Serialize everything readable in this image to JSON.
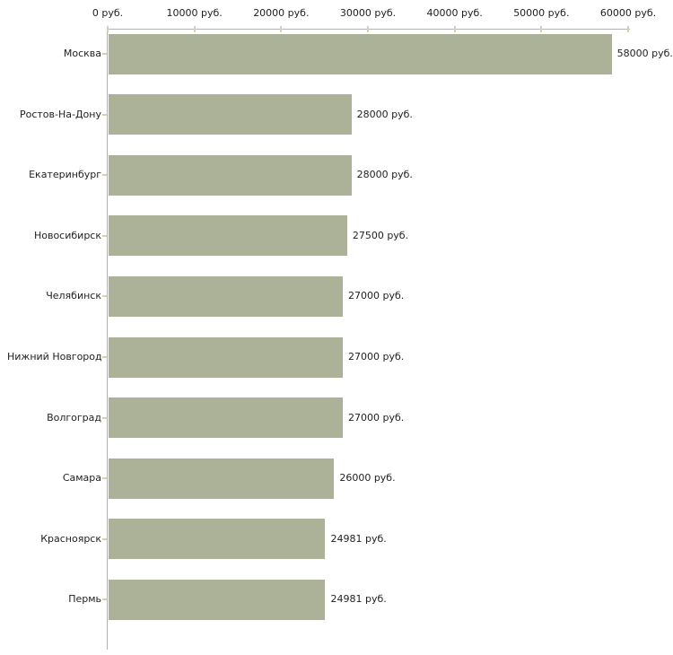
{
  "chart_data": {
    "type": "bar",
    "orientation": "horizontal",
    "title": "",
    "xlabel": "",
    "ylabel": "",
    "grid": false,
    "legend": "none",
    "xlim": [
      0,
      60000
    ],
    "x_tick_values": [
      0,
      10000,
      20000,
      30000,
      40000,
      50000,
      60000
    ],
    "x_tick_labels": [
      "0 руб.",
      "10000 руб.",
      "20000 руб.",
      "30000 руб.",
      "40000 руб.",
      "50000 руб.",
      "60000 руб."
    ],
    "categories": [
      "Москва",
      "Ростов-На-Дону",
      "Екатеринбург",
      "Новосибирск",
      "Челябинск",
      "Нижний Новгород",
      "Волгоград",
      "Самара",
      "Красноярск",
      "Пермь"
    ],
    "values": [
      58000,
      28000,
      28000,
      27500,
      27000,
      27000,
      27000,
      26000,
      24981,
      24981
    ],
    "value_labels": [
      "58000 руб.",
      "28000 руб.",
      "28000 руб.",
      "27500 руб.",
      "27000 руб.",
      "27000 руб.",
      "27000 руб.",
      "26000 руб.",
      "24981 руб.",
      "24981 руб."
    ],
    "colors": {
      "bar": "#acb297",
      "axis_line": "#b3b3b3",
      "tick_mark": "#d8d2aa",
      "text": "#1f1f1f",
      "background": "#ffffff"
    }
  }
}
